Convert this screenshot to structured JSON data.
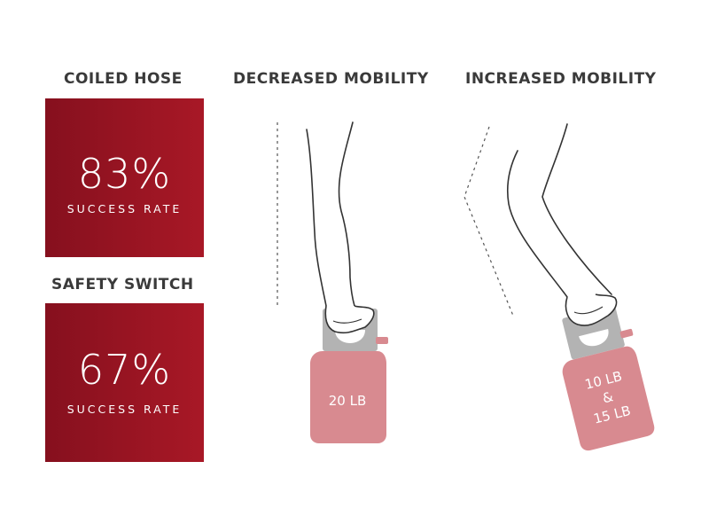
{
  "coiled_hose": {
    "heading": "COILED HOSE",
    "value": "83%",
    "label": "SUCCESS RATE"
  },
  "safety_switch": {
    "heading": "SAFETY SWITCH",
    "value": "67%",
    "label": "SUCCESS RATE"
  },
  "decreased_mobility": {
    "heading": "DECREASED MOBILITY",
    "tank_label": "20 LB"
  },
  "increased_mobility": {
    "heading": "INCREASED MOBILITY",
    "tank_label_line1": "10 LB",
    "tank_label_line2": "&",
    "tank_label_line3": "15 LB"
  },
  "colors": {
    "box_dark": "#86101e",
    "box_light": "#a81826",
    "tank": "#d88a90",
    "collar": "#b3b3b3",
    "heading_text": "#3a3a3a"
  }
}
